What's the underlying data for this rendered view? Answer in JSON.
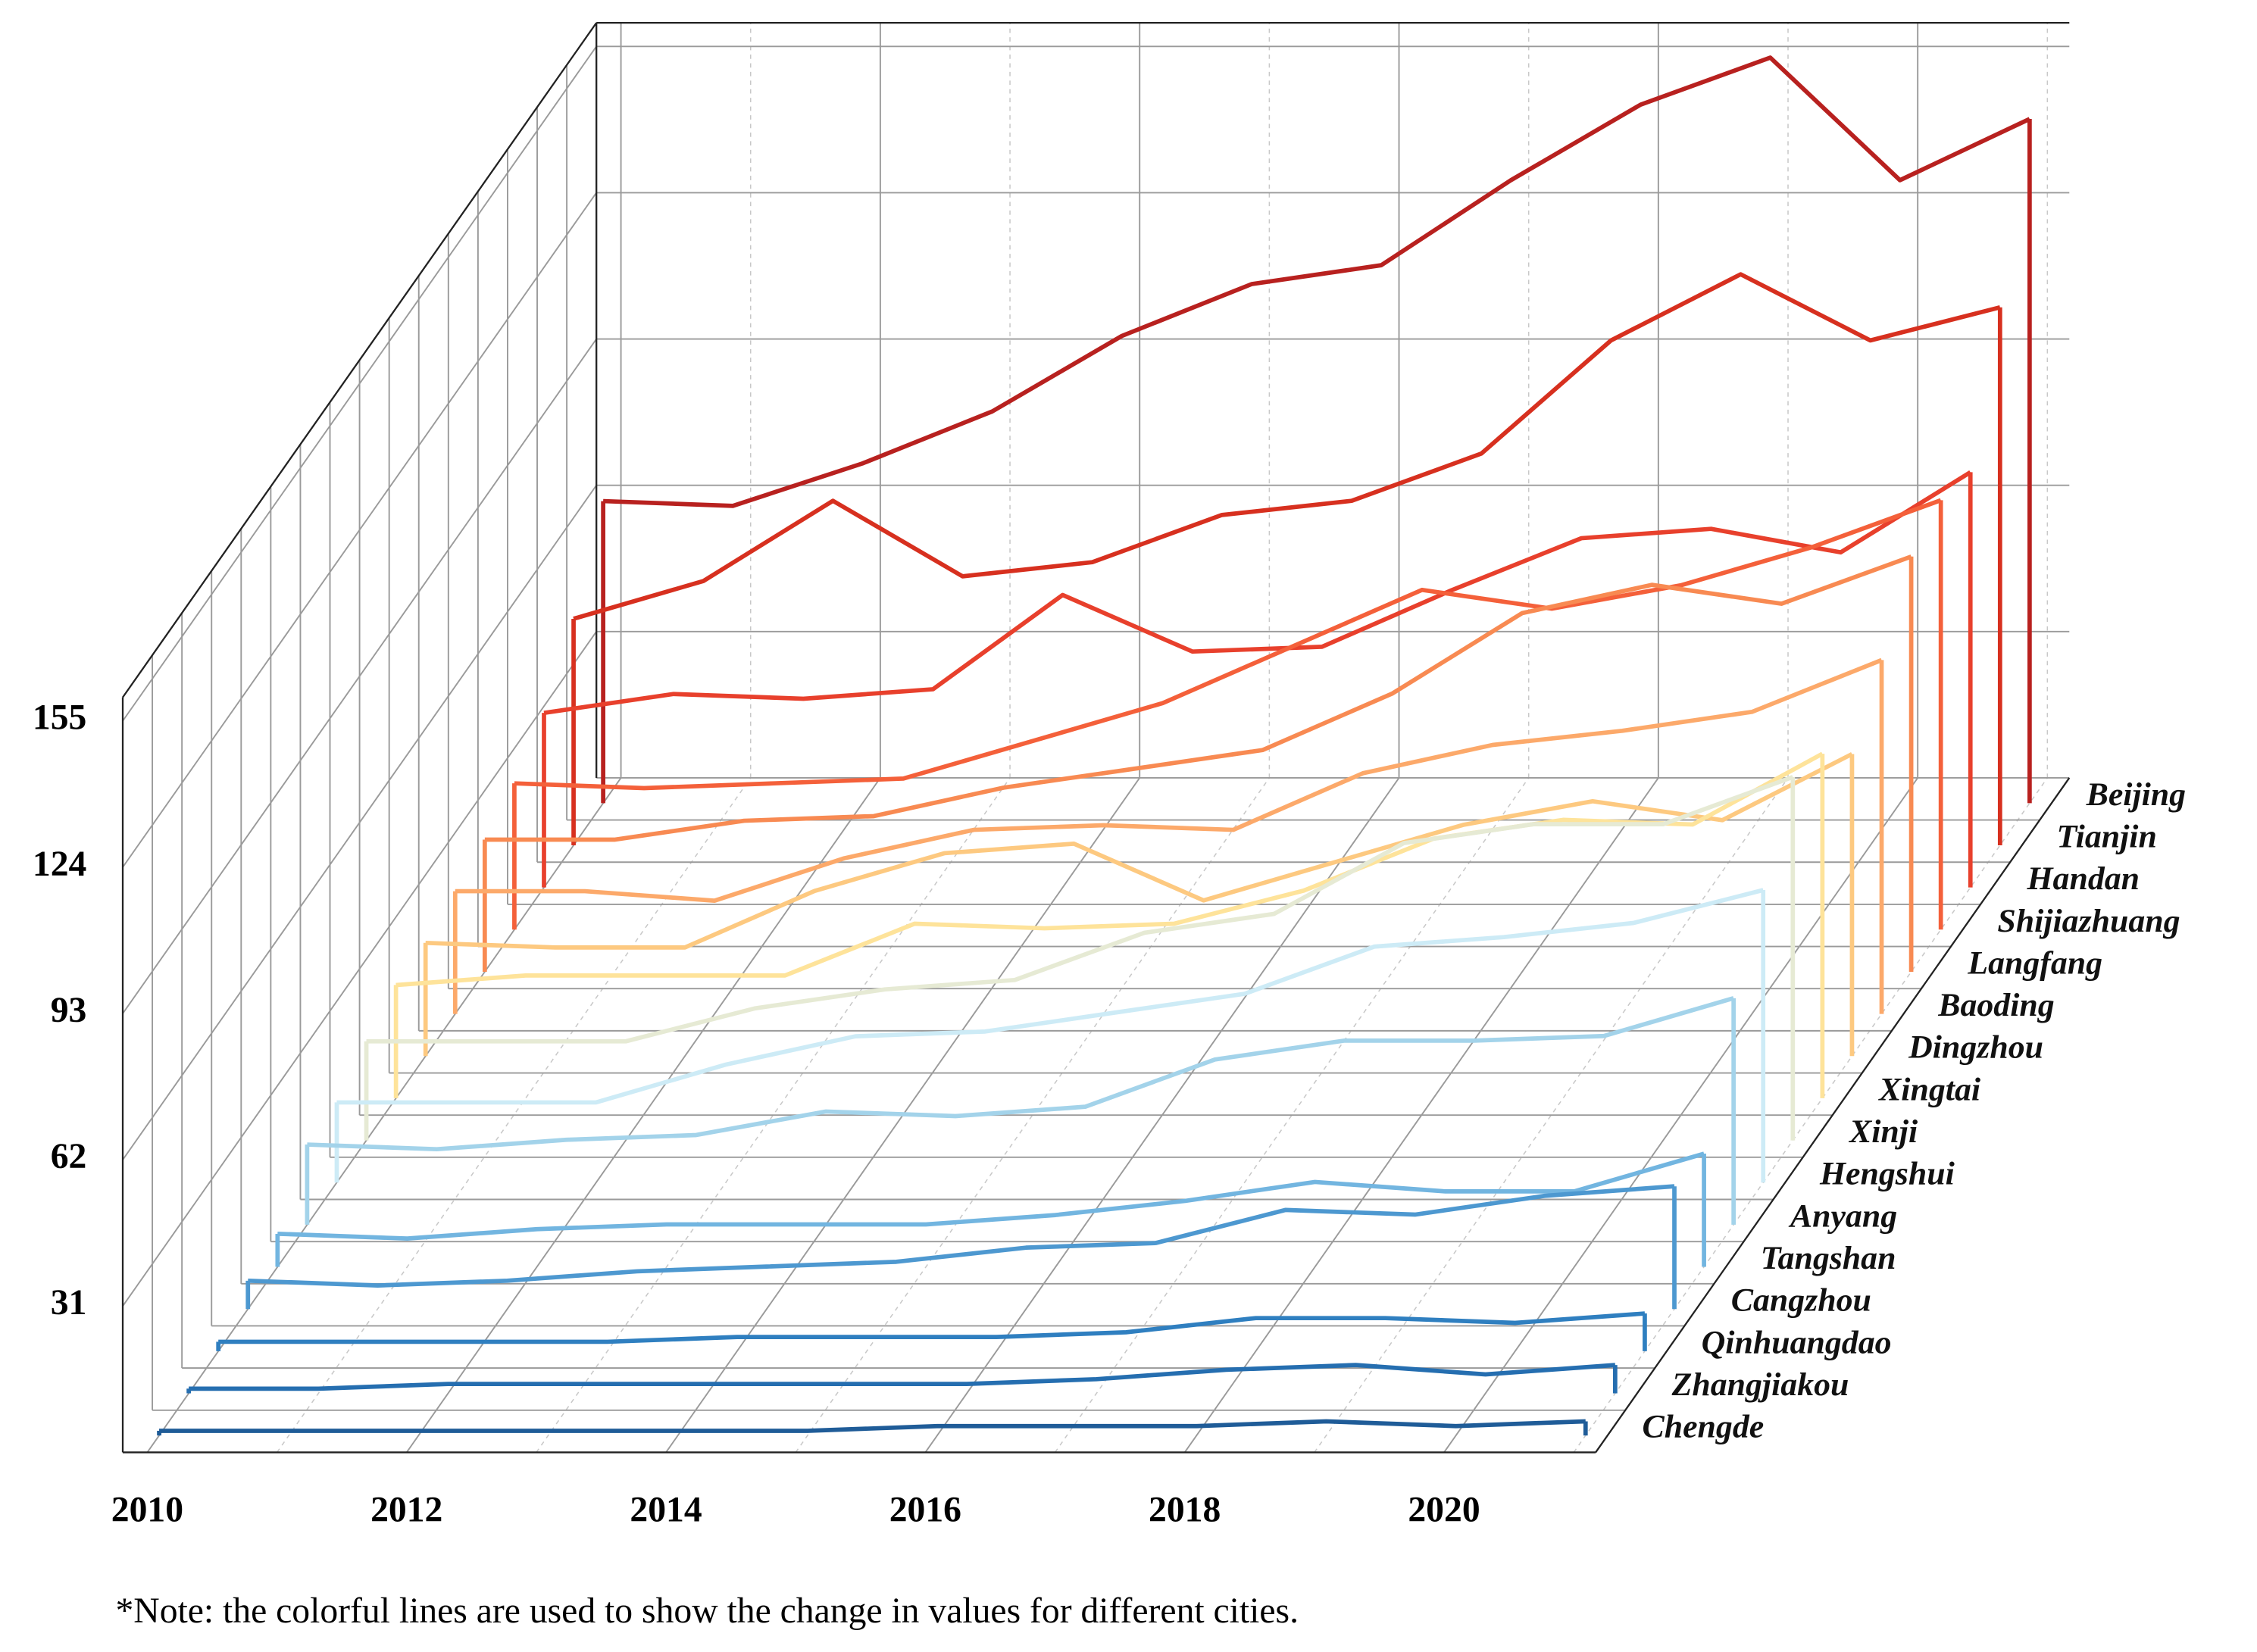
{
  "chart_data": {
    "type": "line3d",
    "note": "*Note: the colorful lines are used to show the change in values for different cities.",
    "x": [
      2010,
      2011,
      2012,
      2013,
      2014,
      2015,
      2016,
      2017,
      2018,
      2019,
      2020,
      2021
    ],
    "xticks": [
      2010,
      2012,
      2014,
      2016,
      2018,
      2020
    ],
    "ylim": [
      0,
      160
    ],
    "yticks": [
      31,
      62,
      93,
      124,
      155
    ],
    "grid": true,
    "series": [
      {
        "name": "Beijing",
        "color": "#b8211f",
        "values": [
          64,
          63,
          72,
          83,
          99,
          110,
          114,
          132,
          148,
          158,
          132,
          145
        ]
      },
      {
        "name": "Tianjin",
        "color": "#d7301f",
        "values": [
          48,
          56,
          73,
          57,
          60,
          70,
          73,
          83,
          107,
          121,
          107,
          114
        ]
      },
      {
        "name": "Handan",
        "color": "#e8402c",
        "values": [
          37,
          41,
          40,
          42,
          62,
          50,
          51,
          63,
          74,
          76,
          71,
          88
        ]
      },
      {
        "name": "Shijiazhuang",
        "color": "#f4603a",
        "values": [
          31,
          30,
          31,
          32,
          40,
          48,
          60,
          72,
          68,
          73,
          81,
          91
        ]
      },
      {
        "name": "Langfang",
        "color": "#f88a52",
        "values": [
          28,
          28,
          32,
          33,
          39,
          43,
          47,
          59,
          76,
          82,
          78,
          88
        ]
      },
      {
        "name": "Baoding",
        "color": "#fca96a",
        "values": [
          26,
          26,
          24,
          33,
          39,
          40,
          39,
          51,
          57,
          60,
          64,
          75
        ]
      },
      {
        "name": "Dingzhou",
        "color": "#fdc980",
        "values": [
          24,
          23,
          23,
          35,
          43,
          45,
          33,
          41,
          49,
          54,
          50,
          64
        ]
      },
      {
        "name": "Xingtai",
        "color": "#fee39a",
        "values": [
          24,
          26,
          26,
          26,
          37,
          36,
          37,
          44,
          55,
          59,
          58,
          73
        ]
      },
      {
        "name": "Xinji",
        "color": "#e6ead4",
        "values": [
          21,
          21,
          21,
          28,
          32,
          34,
          44,
          48,
          63,
          67,
          67,
          77
        ]
      },
      {
        "name": "Hengshui",
        "color": "#cdebf6",
        "values": [
          17,
          17,
          17,
          25,
          31,
          32,
          36,
          40,
          50,
          52,
          55,
          62
        ]
      },
      {
        "name": "Anyang",
        "color": "#a3d3ea",
        "values": [
          17,
          16,
          18,
          19,
          24,
          23,
          25,
          35,
          39,
          39,
          40,
          48
        ]
      },
      {
        "name": "Tangshan",
        "color": "#72b5e0",
        "values": [
          7,
          6,
          8,
          9,
          9,
          9,
          11,
          14,
          18,
          16,
          16,
          24
        ]
      },
      {
        "name": "Cangzhou",
        "color": "#4d98d0",
        "values": [
          6,
          5,
          6,
          8,
          9,
          10,
          13,
          14,
          21,
          20,
          24,
          26
        ]
      },
      {
        "name": "Qinhuangdao",
        "color": "#2f7fc0",
        "values": [
          2,
          2,
          2,
          2,
          3,
          3,
          3,
          4,
          7,
          7,
          6,
          8
        ]
      },
      {
        "name": "Zhangjiakou",
        "color": "#256eb0",
        "values": [
          1,
          1,
          2,
          2,
          2,
          2,
          2,
          3,
          5,
          6,
          4,
          6
        ]
      },
      {
        "name": "Chengde",
        "color": "#1f5c98",
        "values": [
          1,
          1,
          1,
          1,
          1,
          1,
          2,
          2,
          2,
          3,
          2,
          3
        ]
      }
    ]
  }
}
